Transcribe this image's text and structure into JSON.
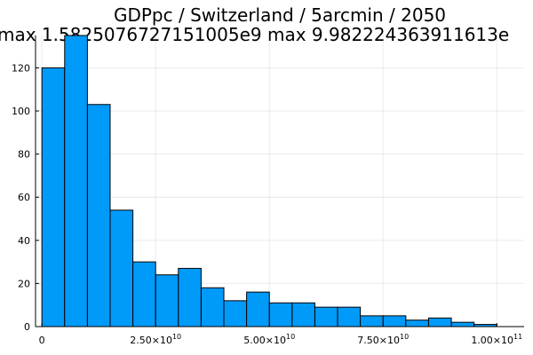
{
  "colors": {
    "bar_fill": "#009af9",
    "bar_stroke": "#000000",
    "background": "#ffffff"
  },
  "chart_data": {
    "type": "bar",
    "title": "GDPpc / Switzerland / 5arcmin / 2050",
    "subtitle": "max 1.5825076727151005e9  max 9.982224363911613e",
    "xlabel": "",
    "ylabel": "",
    "bin_edges": [
      0,
      5000000000.0,
      10000000000.0,
      15000000000.0,
      20000000000.0,
      25000000000.0,
      30000000000.0,
      35000000000.0,
      40000000000.0,
      45000000000.0,
      50000000000.0,
      55000000000.0,
      60000000000.0,
      65000000000.0,
      70000000000.0,
      75000000000.0,
      80000000000.0,
      85000000000.0,
      90000000000.0,
      95000000000.0,
      100000000000.0
    ],
    "values": [
      120,
      135,
      103,
      54,
      30,
      24,
      27,
      18,
      12,
      16,
      11,
      11,
      9,
      9,
      5,
      5,
      3,
      4,
      2,
      1
    ],
    "xlim": [
      -1400000000.0,
      106000000000.0
    ],
    "ylim": [
      0,
      135
    ],
    "x_ticks": [
      {
        "value": 0,
        "mantissa": "0",
        "exp": ""
      },
      {
        "value": 25000000000.0,
        "mantissa": "2.50×10",
        "exp": "10"
      },
      {
        "value": 50000000000.0,
        "mantissa": "5.00×10",
        "exp": "10"
      },
      {
        "value": 75000000000.0,
        "mantissa": "7.50×10",
        "exp": "10"
      },
      {
        "value": 100000000000.0,
        "mantissa": "1.00×10",
        "exp": "11"
      }
    ],
    "y_ticks": [
      0,
      20,
      40,
      60,
      80,
      100,
      120
    ],
    "grid": true,
    "legend": false
  }
}
